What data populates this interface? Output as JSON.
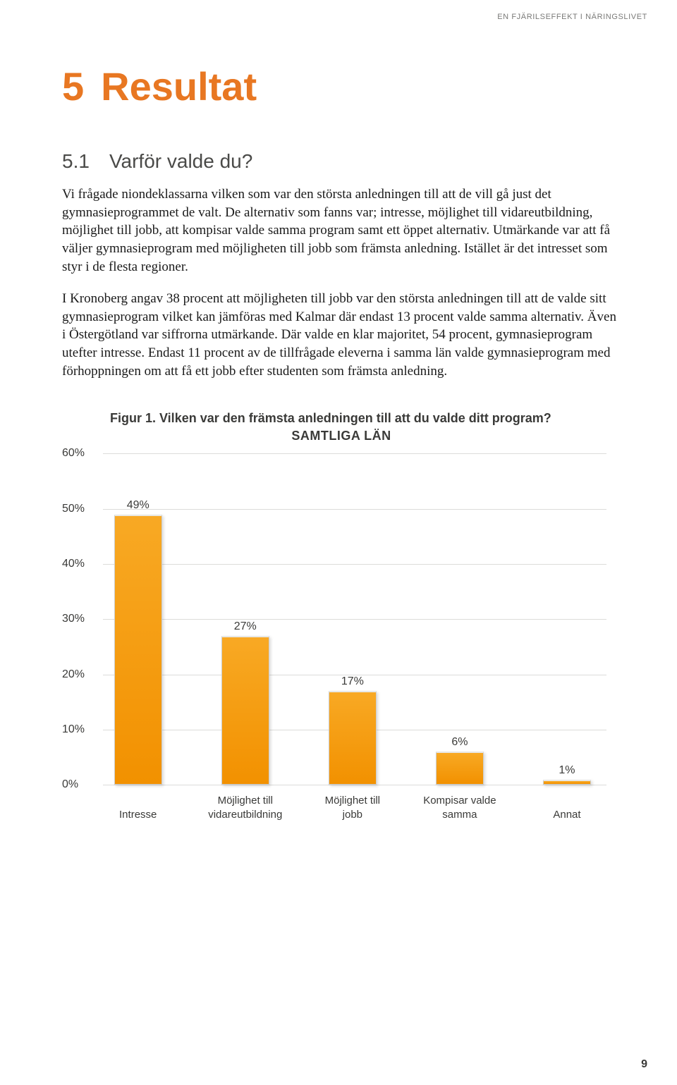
{
  "header": "EN FJÄRILSEFFEKT I NÄRINGSLIVET",
  "chapter": {
    "number": "5",
    "title": "Resultat"
  },
  "section": {
    "number": "5.1",
    "title": "Varför valde du?"
  },
  "paragraphs": [
    "Vi frågade niondeklassarna vilken som var den största anledningen till att de vill gå just det gymnasieprogrammet de valt. De alternativ som fanns var; intresse, möjlighet till vidareutbildning, möjlighet till jobb, att kompisar valde samma program samt ett öppet alternativ. Utmärkande var att få väljer gymnasieprogram med möjligheten till jobb som främsta anledning. Istället är det intresset som styr i de flesta regioner.",
    "I Kronoberg angav 38 procent att möjligheten till jobb var den största anledningen till att de valde sitt gymnasieprogram vilket kan jämföras med Kalmar där endast 13 procent valde samma alternativ. Även i Östergötland var siffrorna utmärkande. Där valde en klar majoritet, 54 procent, gymnasieprogram utefter intresse. Endast 11 procent av de tillfrågade eleverna i samma län valde gymnasieprogram med förhoppningen om att få ett jobb efter studenten som främsta anledning."
  ],
  "figure": {
    "title": "Figur 1. Vilken var den främsta anledningen till att du valde ditt program?",
    "subtitle": "SAMTLIGA LÄN",
    "type": "bar",
    "ylim": [
      0,
      60
    ],
    "ytick_step": 10,
    "yticks": [
      "0%",
      "10%",
      "20%",
      "30%",
      "40%",
      "50%",
      "60%"
    ],
    "categories": [
      "Intresse",
      "Möjlighet till\nvidareutbildning",
      "Möjlighet till\njobb",
      "Kompisar valde\nsamma",
      "Annat"
    ],
    "values": [
      49,
      27,
      17,
      6,
      1
    ],
    "value_labels": [
      "49%",
      "27%",
      "17%",
      "6%",
      "1%"
    ],
    "bar_color_top": "#f8a924",
    "bar_color_bottom": "#f29100",
    "grid_color": "#dcdcda",
    "background_color": "#ffffff",
    "label_fontsize": 16,
    "axis_font": "Arial"
  },
  "page_number": "9"
}
